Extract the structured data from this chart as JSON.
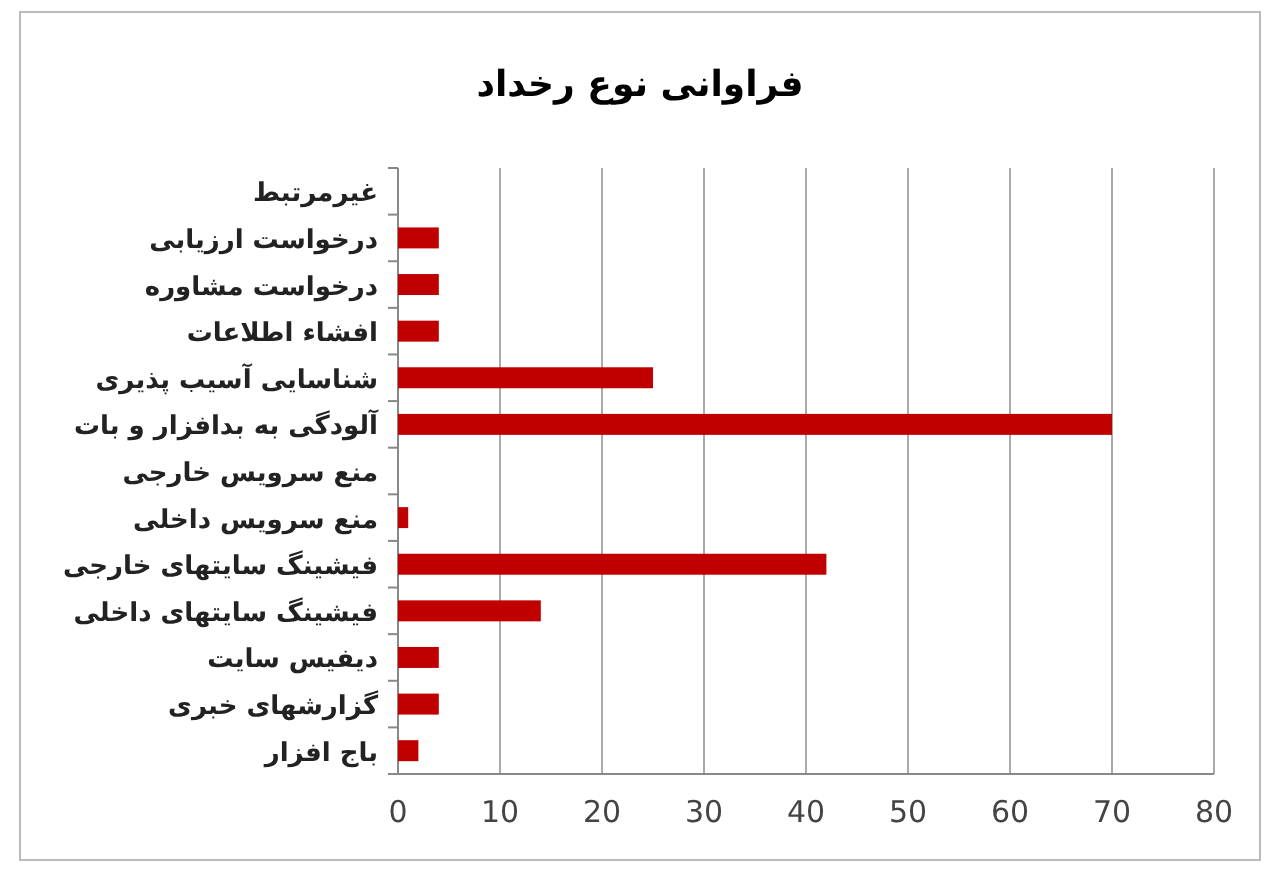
{
  "chart_data": {
    "type": "bar",
    "orientation": "horizontal",
    "title": "فراوانی نوع رخداد",
    "categories": [
      "غیرمرتبط",
      "درخواست ارزیابی",
      "درخواست مشاوره",
      "افشاء اطلاعات",
      "شناسایی آسیب پذیری",
      "آلودگی به بدافزار و بات",
      "منع سرویس خارجی",
      "منع سرویس داخلی",
      "فیشینگ سایتهای خارجی",
      "فیشینگ سایتهای داخلی",
      "دیفیس سایت",
      "گزارشهای خبری",
      "باج افزار"
    ],
    "values": [
      0,
      4,
      4,
      4,
      25,
      70,
      0,
      1,
      42,
      14,
      4,
      4,
      2
    ],
    "color": "#c00000",
    "xlim": [
      0,
      80
    ],
    "xticks": [
      0,
      10,
      20,
      30,
      40,
      50,
      60,
      70,
      80
    ],
    "grid": "x"
  }
}
